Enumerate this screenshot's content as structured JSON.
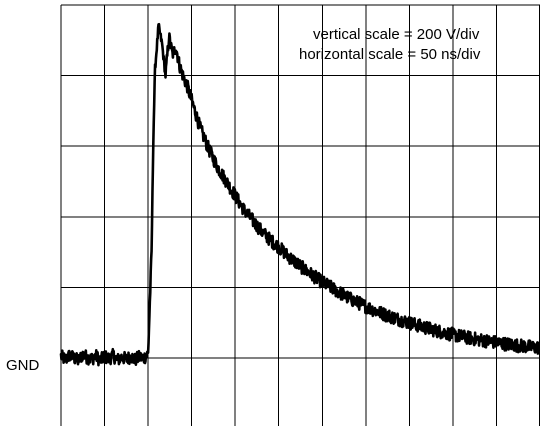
{
  "chart_data": {
    "type": "line",
    "title": "",
    "xlabel": "",
    "ylabel": "",
    "annotations": [
      "vertical scale = 200 V/div",
      "horizontal scale = 50 ns/div"
    ],
    "ground_label": "GND",
    "units": {
      "vertical": "V",
      "horizontal": "ns",
      "vertical_per_div": 200,
      "horizontal_per_div": 50
    },
    "grid": true,
    "xlim": [
      0,
      550
    ],
    "ylim": [
      0,
      1000
    ],
    "divisions": {
      "x": 11,
      "y_above_ground": 5
    },
    "series": [
      {
        "x": [
          0,
          5,
          10,
          15,
          20,
          25,
          30,
          35,
          40,
          45,
          50,
          55,
          60,
          65,
          70,
          75,
          80,
          85,
          90,
          95,
          100,
          104,
          106,
          108,
          112,
          116,
          120,
          124,
          128,
          132,
          136,
          140,
          145,
          150,
          160,
          170,
          180,
          190,
          200,
          210,
          220,
          230,
          240,
          250,
          260,
          270,
          280,
          290,
          300,
          310,
          320,
          330,
          340,
          350,
          360,
          370,
          380,
          390,
          400,
          410,
          420,
          430,
          440,
          450,
          460,
          470,
          480,
          490,
          500,
          510,
          520,
          530,
          540,
          550
        ],
        "y": [
          5,
          -5,
          8,
          0,
          -8,
          10,
          2,
          -3,
          6,
          -7,
          4,
          -2,
          7,
          -6,
          3,
          -4,
          5,
          -5,
          2,
          0,
          12,
          300,
          620,
          820,
          940,
          890,
          800,
          910,
          860,
          880,
          830,
          800,
          770,
          730,
          650,
          590,
          540,
          500,
          460,
          420,
          390,
          360,
          335,
          315,
          290,
          270,
          250,
          232,
          215,
          200,
          185,
          170,
          158,
          146,
          135,
          125,
          116,
          108,
          100,
          92,
          85,
          78,
          72,
          66,
          61,
          56,
          52,
          48,
          44,
          40,
          37,
          34,
          31,
          29
        ]
      }
    ]
  }
}
